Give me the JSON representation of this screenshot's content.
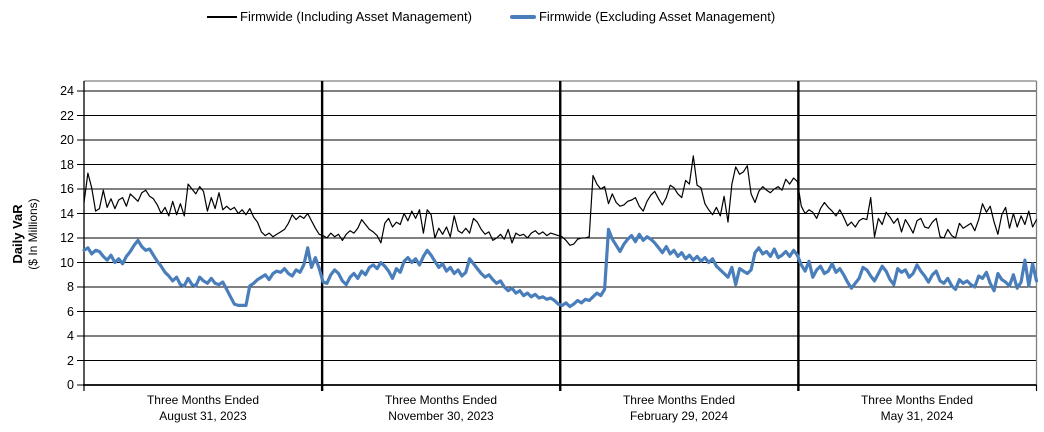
{
  "legend": {
    "position": "top"
  },
  "y_axis": {
    "title_line1": "Daily VaR",
    "title_line2": "($ In Millions)"
  },
  "chart_data": {
    "type": "line",
    "title": "",
    "xlabel": "",
    "ylabel": "Daily VaR ($ In Millions)",
    "ylim": [
      0,
      24
    ],
    "y_ticks": [
      0,
      2,
      4,
      6,
      8,
      10,
      12,
      14,
      16,
      18,
      20,
      22,
      24
    ],
    "grid": "horizontal-major",
    "legend_position": "top",
    "x_groups": [
      {
        "line1": "Three Months Ended",
        "line2": "August 31, 2023"
      },
      {
        "line1": "Three Months Ended",
        "line2": "November 30, 2023"
      },
      {
        "line1": "Three Months Ended",
        "line2": "February 29, 2024"
      },
      {
        "line1": "Three Months Ended",
        "line2": "May 31, 2024"
      }
    ],
    "points_per_group": 62,
    "series": [
      {
        "name": "Firmwide (Including Asset Management)",
        "color": "#000000",
        "line_width": 1.2,
        "values": [
          14.9,
          17.3,
          16.1,
          14.2,
          14.4,
          15.9,
          14.5,
          15.2,
          14.4,
          15.1,
          15.3,
          14.6,
          15.6,
          15.3,
          15.0,
          15.7,
          15.9,
          15.4,
          15.2,
          14.7,
          14.0,
          14.5,
          13.8,
          15.0,
          13.9,
          14.8,
          13.8,
          16.4,
          16.0,
          15.6,
          16.2,
          15.8,
          14.2,
          15.3,
          14.4,
          15.7,
          14.3,
          14.6,
          14.3,
          14.5,
          14.0,
          14.3,
          13.9,
          14.4,
          13.7,
          13.3,
          12.5,
          12.2,
          12.4,
          12.1,
          12.3,
          12.5,
          12.7,
          13.2,
          13.9,
          13.5,
          13.8,
          13.6,
          14.0,
          13.4,
          12.8,
          12.3,
          12.2,
          12.0,
          12.4,
          12.1,
          12.3,
          11.8,
          12.3,
          12.6,
          12.4,
          12.8,
          13.5,
          13.1,
          12.7,
          12.5,
          12.2,
          11.6,
          13.2,
          13.6,
          12.9,
          13.3,
          13.1,
          14.0,
          13.4,
          14.2,
          13.6,
          14.3,
          12.4,
          14.3,
          13.9,
          12.0,
          12.8,
          12.3,
          12.9,
          12.1,
          13.8,
          12.6,
          12.4,
          12.8,
          12.4,
          13.6,
          13.3,
          12.7,
          12.3,
          12.5,
          11.8,
          12.0,
          12.3,
          11.9,
          12.7,
          11.6,
          12.4,
          12.2,
          12.3,
          12.0,
          12.4,
          12.6,
          12.3,
          12.5,
          12.2,
          12.4,
          12.3,
          12.2,
          12.1,
          11.8,
          11.4,
          11.5,
          11.9,
          12.0,
          12.0,
          12.1,
          17.1,
          16.4,
          16.0,
          16.2,
          14.8,
          15.6,
          14.9,
          14.6,
          14.7,
          15.0,
          15.1,
          15.3,
          14.6,
          14.2,
          15.0,
          15.5,
          15.8,
          15.2,
          14.7,
          15.3,
          16.3,
          16.1,
          15.6,
          15.3,
          16.7,
          16.4,
          18.7,
          16.3,
          16.1,
          14.8,
          14.3,
          13.9,
          14.5,
          13.8,
          15.4,
          13.3,
          16.4,
          17.8,
          17.2,
          17.4,
          17.9,
          15.6,
          14.9,
          15.8,
          16.2,
          15.9,
          15.7,
          16.0,
          16.2,
          15.9,
          16.8,
          16.4,
          16.9,
          16.6,
          14.6,
          14.0,
          14.3,
          14.1,
          13.6,
          14.4,
          14.9,
          14.5,
          14.2,
          13.8,
          14.3,
          13.7,
          13.0,
          13.3,
          12.9,
          13.4,
          13.6,
          13.5,
          15.3,
          12.1,
          13.6,
          13.1,
          14.1,
          13.7,
          13.2,
          13.6,
          12.5,
          13.5,
          13.0,
          12.4,
          13.4,
          13.6,
          12.9,
          12.8,
          13.3,
          13.6,
          12.1,
          12.0,
          12.7,
          12.2,
          12.0,
          13.2,
          12.8,
          13.0,
          13.2,
          12.6,
          13.5,
          14.8,
          14.1,
          14.6,
          13.3,
          12.3,
          13.9,
          14.5,
          12.8,
          14.0,
          12.9,
          13.8,
          13.1,
          14.2,
          12.9,
          13.5
        ]
      },
      {
        "name": "Firmwide (Excluding Asset Management)",
        "color": "#4a7ebb",
        "line_width": 3.2,
        "values": [
          11.0,
          11.2,
          10.7,
          11.0,
          10.9,
          10.5,
          10.2,
          10.6,
          10.0,
          10.3,
          9.9,
          10.5,
          10.9,
          11.4,
          11.8,
          11.3,
          11.0,
          11.1,
          10.6,
          10.1,
          9.7,
          9.2,
          8.9,
          8.5,
          8.8,
          8.2,
          8.1,
          8.7,
          8.2,
          8.1,
          8.8,
          8.5,
          8.3,
          8.7,
          8.3,
          8.2,
          8.4,
          7.8,
          7.2,
          6.6,
          6.5,
          6.5,
          6.5,
          8.1,
          8.3,
          8.6,
          8.8,
          9.0,
          8.6,
          9.1,
          9.3,
          9.2,
          9.5,
          9.1,
          8.9,
          9.4,
          9.2,
          9.8,
          11.2,
          9.6,
          10.4,
          9.5,
          8.4,
          8.3,
          9.0,
          9.4,
          9.1,
          8.5,
          8.2,
          8.8,
          9.1,
          8.7,
          9.3,
          9.0,
          9.6,
          9.8,
          9.5,
          10.0,
          9.7,
          9.3,
          8.7,
          9.5,
          9.2,
          10.1,
          10.4,
          10.0,
          10.3,
          9.8,
          10.5,
          11.0,
          10.6,
          10.1,
          9.6,
          9.9,
          9.3,
          9.6,
          9.1,
          9.4,
          8.9,
          9.2,
          10.3,
          9.9,
          9.5,
          9.1,
          8.8,
          9.0,
          8.6,
          8.3,
          8.5,
          8.0,
          7.7,
          7.9,
          7.5,
          7.7,
          7.3,
          7.5,
          7.2,
          7.4,
          7.1,
          7.2,
          7.0,
          7.1,
          6.9,
          6.6,
          6.5,
          6.7,
          6.4,
          6.6,
          6.9,
          6.7,
          7.0,
          6.9,
          7.2,
          7.5,
          7.3,
          7.8,
          12.7,
          11.9,
          11.4,
          10.9,
          11.5,
          11.9,
          12.2,
          11.7,
          12.3,
          11.8,
          12.1,
          11.9,
          11.6,
          11.2,
          10.8,
          11.3,
          10.7,
          11.0,
          10.5,
          10.8,
          10.3,
          10.6,
          10.2,
          10.5,
          10.1,
          10.4,
          10.0,
          10.3,
          9.7,
          9.4,
          9.1,
          8.8,
          9.6,
          8.2,
          9.5,
          9.3,
          9.1,
          9.4,
          10.8,
          11.2,
          10.7,
          10.9,
          10.5,
          11.1,
          10.4,
          10.6,
          10.9,
          10.5,
          11.0,
          10.6,
          9.8,
          9.3,
          10.1,
          8.8,
          9.4,
          9.7,
          9.1,
          9.3,
          9.9,
          9.2,
          9.5,
          9.0,
          8.4,
          7.9,
          8.3,
          8.7,
          9.6,
          9.4,
          8.9,
          8.5,
          9.1,
          9.7,
          9.3,
          8.6,
          8.2,
          9.5,
          9.2,
          9.4,
          8.8,
          9.1,
          9.8,
          9.3,
          8.9,
          8.4,
          9.0,
          9.3,
          8.5,
          8.3,
          8.7,
          8.1,
          7.8,
          8.6,
          8.3,
          8.5,
          8.2,
          8.0,
          8.9,
          8.7,
          9.2,
          8.3,
          7.7,
          9.1,
          8.6,
          8.4,
          8.1,
          9.0,
          7.9,
          8.4,
          10.2,
          8.1,
          9.9,
          8.5
        ]
      }
    ],
    "colors": {
      "plot_border_top_right": "#808080",
      "axis": "#000000",
      "gridline": "#000000",
      "quarter_divider": "#000000"
    }
  }
}
